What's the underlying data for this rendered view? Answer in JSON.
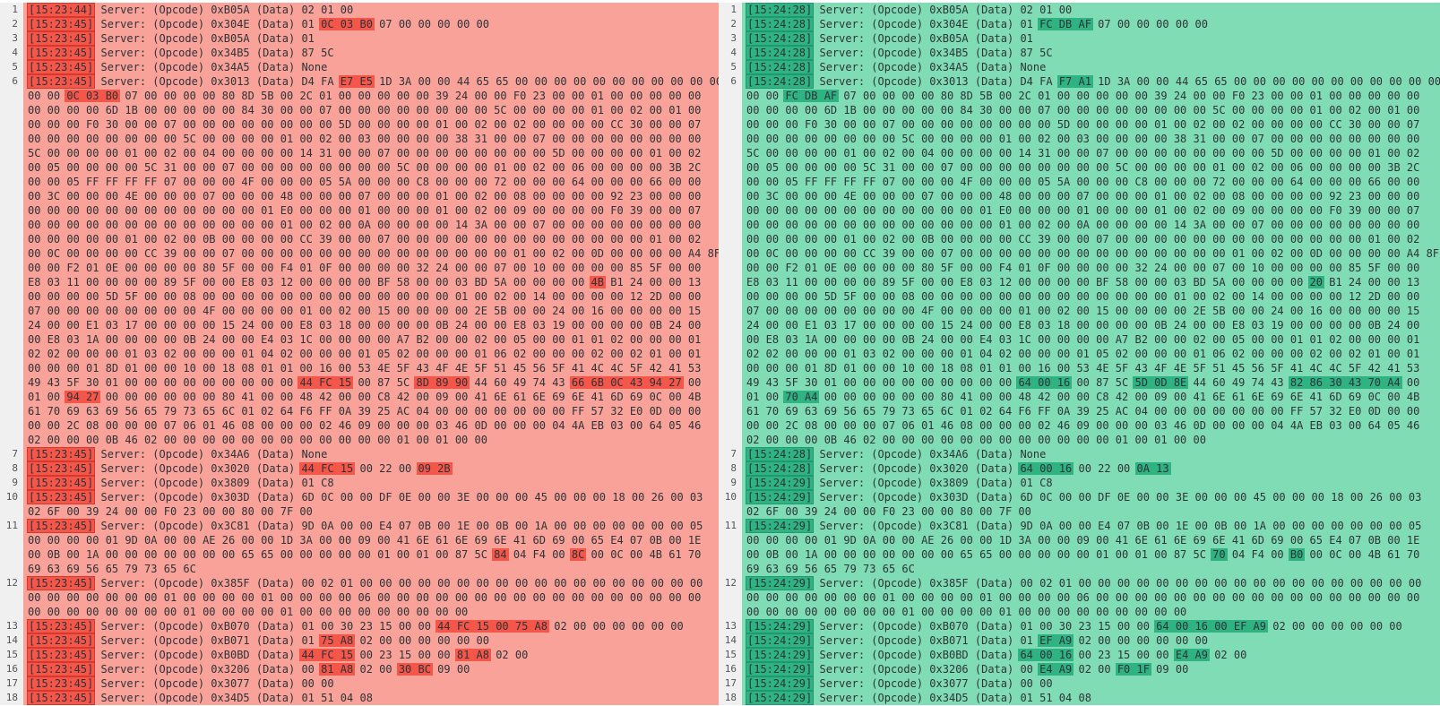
{
  "app": {
    "description": "side-by-side packet log diff viewer, left capture vs right capture"
  },
  "colors": {
    "left_bg": "#f8a29a",
    "left_highlight": "#f4564a",
    "right_bg": "#80dcb5",
    "right_highlight": "#2fb383",
    "gutter_bg": "#f0f0f0",
    "line_number": "#50565c",
    "text": "#2e3338",
    "page_bg": "#ffffff"
  },
  "timestamps": {
    "left": [
      "15:23:44",
      "15:23:45",
      "15:23:45",
      "15:23:45",
      "15:23:45",
      "15:23:45",
      "15:23:45",
      "15:23:45",
      "15:23:45",
      "15:23:45",
      "15:23:45",
      "15:23:45",
      "15:23:45",
      "15:23:45",
      "15:23:45",
      "15:23:45",
      "15:23:45",
      "15:23:45"
    ],
    "right": [
      "15:24:28",
      "15:24:28",
      "15:24:28",
      "15:24:28",
      "15:24:28",
      "15:24:28",
      "15:24:28",
      "15:24:28",
      "15:24:29",
      "15:24:29",
      "15:24:29",
      "15:24:29",
      "15:24:29",
      "15:24:29",
      "15:24:29",
      "15:24:29",
      "15:24:29",
      "15:24:29"
    ]
  },
  "rows": [
    {
      "n": 1,
      "s": [
        [
          "Server: (Opcode) 0xB05A (Data) 02 01 00"
        ]
      ]
    },
    {
      "n": 2,
      "s": [
        [
          "Server: (Opcode) 0x304E (Data) 01 "
        ],
        [
          "0C 03 B0",
          "FC DB AF"
        ],
        [
          " 07 00 00 00 00 00"
        ]
      ]
    },
    {
      "n": 3,
      "s": [
        [
          "Server: (Opcode) 0xB05A (Data) 01"
        ]
      ]
    },
    {
      "n": 4,
      "s": [
        [
          "Server: (Opcode) 0x34B5 (Data) 87 5C"
        ]
      ]
    },
    {
      "n": 5,
      "s": [
        [
          "Server: (Opcode) 0x34A5 (Data) None"
        ]
      ]
    },
    {
      "n": 6,
      "s": [
        [
          "Server: (Opcode) 0x3013 (Data) D4 FA "
        ],
        [
          "E7 E5",
          "F7 A1"
        ],
        [
          " 1D 3A 00 00 44 65 65 00 00 00 00 00 00 00 00 00 00 00"
        ]
      ]
    },
    {
      "s": [
        [
          "00 00 "
        ],
        [
          "0C 03 B0",
          "FC DB AF"
        ],
        [
          " 07 00 00 00 00 80 8D 5B 00 2C 01 00 00 00 00 00 39 24 00 00 F0 23 00 00 01 00 00 00 00 00"
        ]
      ]
    },
    {
      "s": [
        [
          "00 00 00 00 6D 1B 00 00 00 00 00 84 30 00 00 07 00 00 00 00 00 00 00 00 5C 00 00 00 00 01 00 02 00 01 00"
        ]
      ]
    },
    {
      "s": [
        [
          "00 00 00 F0 30 00 00 07 00 00 00 00 00 00 00 00 5D 00 00 00 00 01 00 02 00 02 00 00 00 00 CC 30 00 00 07"
        ]
      ]
    },
    {
      "s": [
        [
          "00 00 00 00 00 00 00 00 5C 00 00 00 00 01 00 02 00 03 00 00 00 00 38 31 00 00 07 00 00 00 00 00 00 00 00"
        ]
      ]
    },
    {
      "s": [
        [
          "5C 00 00 00 00 01 00 02 00 04 00 00 00 00 14 31 00 00 07 00 00 00 00 00 00 00 00 5D 00 00 00 00 01 00 02"
        ]
      ]
    },
    {
      "s": [
        [
          "00 05 00 00 00 00 5C 31 00 00 07 00 00 00 00 00 00 00 00 5C 00 00 00 00 01 00 02 00 06 00 00 00 00 3B 2C"
        ]
      ]
    },
    {
      "s": [
        [
          "00 00 05 FF FF FF FF 07 00 00 00 4F 00 00 00 05 5A 00 00 00 C8 00 00 00 72 00 00 00 64 00 00 00 66 00 00"
        ]
      ]
    },
    {
      "s": [
        [
          "00 3C 00 00 00 4E 00 00 00 07 00 00 00 48 00 00 00 07 00 00 00 01 00 02 00 08 00 00 00 00 92 23 00 00 00"
        ]
      ]
    },
    {
      "s": [
        [
          "00 00 00 00 00 00 00 00 00 00 00 00 01 E0 00 00 00 01 00 00 00 01 00 02 00 09 00 00 00 00 F0 39 00 00 07"
        ]
      ]
    },
    {
      "s": [
        [
          "00 00 00 00 00 00 00 00 00 00 00 00 00 01 00 02 00 0A 00 00 00 00 14 3A 00 00 07 00 00 00 00 00 00 00 00"
        ]
      ]
    },
    {
      "s": [
        [
          "00 00 00 00 00 01 00 02 00 0B 00 00 00 00 CC 39 00 00 07 00 00 00 00 00 00 00 00 00 00 00 00 00 01 00 02"
        ]
      ]
    },
    {
      "s": [
        [
          "00 0C 00 00 00 00 CC 39 00 00 07 00 00 00 00 00 00 00 00 00 00 00 00 00 00 01 00 02 00 0D 00 00 00 00 A4 8F"
        ]
      ]
    },
    {
      "s": [
        [
          "00 00 F2 01 0E 00 00 00 00 80 5F 00 00 F4 01 0F 00 00 00 00 32 24 00 00 07 00 10 00 00 00 00 85 5F 00 00"
        ]
      ]
    },
    {
      "s": [
        [
          "E8 03 11 00 00 00 00 89 5F 00 00 E8 03 12 00 00 00 00 BF 58 00 00 03 BD 5A 00 00 00 00 "
        ],
        [
          "4B",
          "20"
        ],
        [
          " B1 24 00 00 13"
        ]
      ]
    },
    {
      "s": [
        [
          "00 00 00 00 5D 5F 00 00 08 00 00 00 00 00 00 00 00 00 00 00 00 00 01 00 02 00 14 00 00 00 00 12 2D 00 00"
        ]
      ]
    },
    {
      "s": [
        [
          "07 00 00 00 00 00 00 00 00 4F 00 00 00 00 01 00 02 00 15 00 00 00 00 2E 5B 00 00 24 00 16 00 00 00 00 15"
        ]
      ]
    },
    {
      "s": [
        [
          "24 00 00 E1 03 17 00 00 00 00 15 24 00 00 E8 03 18 00 00 00 00 0B 24 00 00 E8 03 19 00 00 00 00 0B 24 00"
        ]
      ]
    },
    {
      "s": [
        [
          "00 E8 03 1A 00 00 00 00 0B 24 00 00 E4 03 1C 00 00 00 00 A7 B2 00 00 02 00 05 00 00 01 01 02 00 00 00 01"
        ]
      ]
    },
    {
      "s": [
        [
          "02 02 00 00 00 01 03 02 00 00 00 01 04 02 00 00 00 01 05 02 00 00 00 01 06 02 00 00 00 02 00 02 01 00 01"
        ]
      ]
    },
    {
      "s": [
        [
          "00 00 00 01 8D 01 00 00 10 00 18 08 01 01 00 16 00 53 4E 5F 43 4F 4E 5F 51 45 56 5F 41 4C 4C 5F 42 41 53"
        ]
      ]
    },
    {
      "s": [
        [
          "49 43 5F 30 01 00 00 00 00 00 00 00 00 00 "
        ],
        [
          "44 FC 15",
          "64 00 16"
        ],
        [
          " 00 87 5C "
        ],
        [
          "8D 89 90",
          "5D 0D 8E"
        ],
        [
          " 44 60 49 74 43 "
        ],
        [
          "66 6B 0C 43 94 27",
          "82 86 30 43 70 A4"
        ],
        [
          " 00"
        ]
      ]
    },
    {
      "s": [
        [
          "01 00 "
        ],
        [
          "94 27",
          "70 A4"
        ],
        [
          " 00 00 00 00 00 00 80 41 00 00 48 42 00 00 C8 42 00 09 00 41 6E 61 6E 69 6E 41 6D 69 0C 00 4B"
        ]
      ]
    },
    {
      "s": [
        [
          "61 70 69 63 69 56 65 79 73 65 6C 01 02 64 F6 FF 0A 39 25 AC 04 00 00 00 00 00 00 00 FF 57 32 E0 0D 00 00"
        ]
      ]
    },
    {
      "s": [
        [
          "00 00 2C 08 00 00 00 07 06 01 46 08 00 00 00 02 46 09 00 00 00 03 46 0D 00 00 00 04 4A EB 03 00 64 05 46"
        ]
      ]
    },
    {
      "s": [
        [
          "02 00 00 00 0B 46 02 00 00 00 00 00 00 00 00 00 00 00 00 01 00 01 00 00"
        ]
      ]
    },
    {
      "n": 7,
      "s": [
        [
          "Server: (Opcode) 0x34A6 (Data) None"
        ]
      ]
    },
    {
      "n": 8,
      "s": [
        [
          "Server: (Opcode) 0x3020 (Data) "
        ],
        [
          "44 FC 15",
          "64 00 16"
        ],
        [
          " 00 22 00 "
        ],
        [
          "09 2B",
          "0A 13"
        ]
      ]
    },
    {
      "n": 9,
      "s": [
        [
          "Server: (Opcode) 0x3809 (Data) 01 C8"
        ]
      ]
    },
    {
      "n": 10,
      "s": [
        [
          "Server: (Opcode) 0x303D (Data) 6D 0C 00 00 DF 0E 00 00 3E 00 00 00 45 00 00 00 18 00 26 00 03"
        ]
      ]
    },
    {
      "s": [
        [
          "02 6F 00 39 24 00 00 F0 23 00 00 80 00 7F 00"
        ]
      ]
    },
    {
      "n": 11,
      "s": [
        [
          "Server: (Opcode) 0x3C81 (Data) 9D 0A 00 00 E4 07 0B 00 1E 00 0B 00 1A 00 00 00 00 00 00 00 05"
        ]
      ]
    },
    {
      "s": [
        [
          "00 00 00 00 01 9D 0A 00 00 AE 26 00 00 1D 3A 00 00 09 00 41 6E 61 6E 69 6E 41 6D 69 00 65 E4 07 0B 00 1E"
        ]
      ]
    },
    {
      "s": [
        [
          "00 0B 00 1A 00 00 00 00 00 00 00 65 65 00 00 00 00 00 01 00 01 00 87 5C "
        ],
        [
          "84",
          "70"
        ],
        [
          " 04 F4 00 "
        ],
        [
          "8C",
          "B0"
        ],
        [
          " 00 0C 00 4B 61 70"
        ]
      ]
    },
    {
      "s": [
        [
          "69 63 69 56 65 79 73 65 6C"
        ]
      ]
    },
    {
      "n": 12,
      "s": [
        [
          "Server: (Opcode) 0x385F (Data) 00 02 01 00 00 00 00 00 00 00 00 00 00 00 00 00 00 00 00 00 00"
        ]
      ]
    },
    {
      "s": [
        [
          "00 00 00 00 00 00 00 01 00 00 00 00 01 00 00 00 00 06 00 00 00 00 00 00 00 00 00 00 00 00 00 00 00 00 00"
        ]
      ]
    },
    {
      "s": [
        [
          "00 00 00 00 00 00 00 00 01 00 00 00 00 01 00 00 00 00 00 00 00 00 00"
        ]
      ]
    },
    {
      "n": 13,
      "s": [
        [
          "Server: (Opcode) 0xB070 (Data) 01 00 30 23 15 00 00 "
        ],
        [
          "44 FC 15 00 75 A8",
          "64 00 16 00 EF A9"
        ],
        [
          " 02 00 00 00 00 00 00"
        ]
      ]
    },
    {
      "n": 14,
      "s": [
        [
          "Server: (Opcode) 0xB071 (Data) 01 "
        ],
        [
          "75 A8",
          "EF A9"
        ],
        [
          " 02 00 00 00 00 00 00"
        ]
      ]
    },
    {
      "n": 15,
      "s": [
        [
          "Server: (Opcode) 0xB0BD (Data) "
        ],
        [
          "44 FC 15",
          "64 00 16"
        ],
        [
          " 00 23 15 00 00 "
        ],
        [
          "81 A8",
          "E4 A9"
        ],
        [
          " 02 00"
        ]
      ]
    },
    {
      "n": 16,
      "s": [
        [
          "Server: (Opcode) 0x3206 (Data) 00 "
        ],
        [
          "81 A8",
          "E4 A9"
        ],
        [
          " 02 00 "
        ],
        [
          "30 BC",
          "F0 1F"
        ],
        [
          " 09 00"
        ]
      ]
    },
    {
      "n": 17,
      "s": [
        [
          "Server: (Opcode) 0x3077 (Data) 00 00"
        ]
      ]
    },
    {
      "n": 18,
      "s": [
        [
          "Server: (Opcode) 0x34D5 (Data) 01 51 04 08"
        ]
      ]
    }
  ]
}
